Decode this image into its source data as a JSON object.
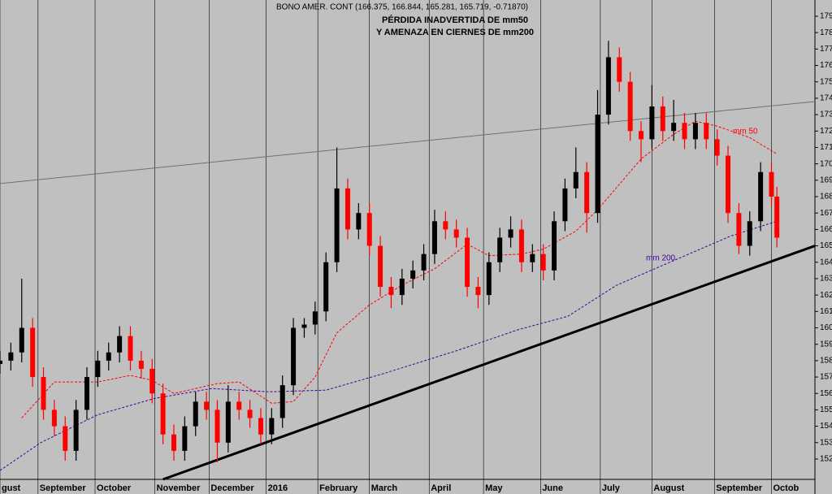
{
  "chart_data": {
    "type": "candlestick",
    "header": "BONO AMER. CONT (166.375, 166.844, 165.281, 165.719, -0.71870)",
    "title": [
      "PÉRDIDA INADVERTIDA DE mm50",
      "Y AMENAZA EN CIERNES DE mm200"
    ],
    "xlim": [
      0,
      300
    ],
    "ylim": [
      150.76,
      179.99
    ],
    "yticks": [
      152,
      153,
      154,
      155,
      156,
      157,
      158,
      159,
      160,
      161,
      162,
      163,
      164,
      165,
      166,
      167,
      168,
      169,
      170,
      171,
      172,
      173,
      174,
      175,
      176,
      177,
      178,
      179
    ],
    "xticks": [
      {
        "value": 0,
        "label": "gust"
      },
      {
        "value": 14,
        "label": "September"
      },
      {
        "value": 35,
        "label": "October"
      },
      {
        "value": 57,
        "label": "November"
      },
      {
        "value": 77,
        "label": "December"
      },
      {
        "value": 98,
        "label": "2016"
      },
      {
        "value": 117,
        "label": "February"
      },
      {
        "value": 136,
        "label": "March"
      },
      {
        "value": 158,
        "label": "April"
      },
      {
        "value": 178,
        "label": "May"
      },
      {
        "value": 199,
        "label": "June"
      },
      {
        "value": 221,
        "label": "July"
      },
      {
        "value": 240,
        "label": "August"
      },
      {
        "value": 263,
        "label": "September"
      },
      {
        "value": 284,
        "label": "Octob"
      }
    ],
    "up_color": "#000000",
    "down_color": "#ff0000",
    "x": [
      0,
      4,
      8,
      12,
      16,
      20,
      24,
      28,
      32,
      36,
      40,
      44,
      48,
      52,
      56,
      60,
      64,
      68,
      72,
      76,
      80,
      84,
      88,
      92,
      96,
      100,
      104,
      108,
      112,
      116,
      120,
      124,
      128,
      132,
      136,
      140,
      144,
      148,
      152,
      156,
      160,
      164,
      168,
      172,
      176,
      180,
      184,
      188,
      192,
      196,
      200,
      204,
      208,
      212,
      216,
      220,
      224,
      228,
      232,
      236,
      240,
      244,
      248,
      252,
      256,
      260,
      264,
      268,
      272,
      276,
      280,
      284,
      286
    ],
    "open": [
      157.8,
      158,
      158.5,
      160,
      157,
      155,
      154,
      152.5,
      155,
      157,
      158,
      158.5,
      159.5,
      158,
      157.5,
      156,
      153.5,
      152.5,
      154,
      155.5,
      155,
      153,
      155.5,
      155,
      154.5,
      153.5,
      154.5,
      156.5,
      160,
      160.2,
      161,
      164,
      168.5,
      166,
      167,
      165,
      162.5,
      162,
      163,
      163.5,
      164.5,
      166.5,
      166,
      165.5,
      162.5,
      162,
      164,
      165.5,
      166,
      164,
      164.5,
      163.5,
      166.5,
      168.5,
      169.5,
      167,
      173,
      176.5,
      175,
      172,
      171.5,
      173.5,
      172,
      172.5,
      171.5,
      172.5,
      171.5,
      170.5,
      167,
      165,
      166.5,
      169.5,
      168
    ],
    "high": [
      158.6,
      159.1,
      163,
      160.6,
      157.6,
      155.6,
      154.6,
      155.6,
      157.6,
      158.6,
      159.1,
      160.1,
      160.1,
      158.6,
      158.1,
      156.6,
      154.1,
      154.6,
      156.1,
      156.1,
      155.6,
      156.5,
      156.1,
      155.6,
      155.1,
      155.1,
      157.1,
      160.6,
      160.6,
      161.6,
      164.6,
      171,
      169.1,
      167.6,
      167.6,
      165.6,
      163.1,
      163.6,
      164.1,
      165.1,
      167.2,
      167.1,
      166.6,
      166.1,
      163.1,
      164.6,
      166.1,
      166.8,
      166.6,
      165.1,
      165.1,
      167.1,
      169.1,
      171,
      170.1,
      174.5,
      177.5,
      177.1,
      175.6,
      172.6,
      174.8,
      174.1,
      173.9,
      173.1,
      173.1,
      173.1,
      172.1,
      171.1,
      167.6,
      167.1,
      170.1,
      170.1,
      168.6
    ],
    "low": [
      157.2,
      157.4,
      157.9,
      156.4,
      154.4,
      153.4,
      151.9,
      151.9,
      154.4,
      156.4,
      157.4,
      157.9,
      157.4,
      156.9,
      155.4,
      152.9,
      151.9,
      151.9,
      153.4,
      154.4,
      151.8,
      152.4,
      154.4,
      153.9,
      152.9,
      152.9,
      153.9,
      155.9,
      159.4,
      159.6,
      160.4,
      163.4,
      165.4,
      165.4,
      164.4,
      161.9,
      161.2,
      161.4,
      162.4,
      162.9,
      163.9,
      165.4,
      164.9,
      161.9,
      161.2,
      161.4,
      163.4,
      164.9,
      163.4,
      163.4,
      162.9,
      162.9,
      165.9,
      167.9,
      165.8,
      166.4,
      172.4,
      174.4,
      171.4,
      170.1,
      170.9,
      171.4,
      171.4,
      170.9,
      170.9,
      170.9,
      169.9,
      166.4,
      164.5,
      164.4,
      165.9,
      167.4,
      164.9
    ],
    "close": [
      158,
      158.5,
      160,
      157,
      155,
      154,
      152.5,
      155,
      157,
      158,
      158.5,
      159.5,
      158,
      157.5,
      156,
      153.5,
      152.5,
      154,
      155.5,
      155,
      153,
      155.5,
      155,
      154.5,
      153.5,
      154.5,
      156.5,
      160,
      160.2,
      161,
      164,
      168.5,
      166,
      167,
      165,
      162.5,
      162,
      163,
      163.5,
      164.5,
      166.5,
      166,
      165.5,
      162.5,
      162,
      164,
      165.5,
      166,
      164,
      164.5,
      163.5,
      166.5,
      168.5,
      169.5,
      167,
      173,
      176.5,
      175,
      172,
      171.5,
      173.5,
      172,
      172.5,
      171.5,
      172.5,
      171.5,
      170.5,
      167,
      165,
      166.5,
      169.5,
      168,
      165.5
    ],
    "series": [
      {
        "name": "mm 50",
        "color": "#ff0000",
        "x": [
          8,
          20,
          36,
          48,
          56,
          64,
          80,
          88,
          100,
          108,
          116,
          124,
          136,
          148,
          160,
          172,
          180,
          192,
          200,
          212,
          220,
          236,
          248,
          256,
          264,
          276,
          286
        ],
        "values": [
          154.5,
          156.7,
          156.7,
          157.1,
          156.8,
          156,
          156.6,
          156.7,
          155.4,
          155.5,
          157,
          159.7,
          161.4,
          162.6,
          163.6,
          165.1,
          164.4,
          164.5,
          164.8,
          165.9,
          167.2,
          170.3,
          171.8,
          172.6,
          172.3,
          171.6,
          170.6
        ]
      },
      {
        "name": "mm 200",
        "color": "#4000a0",
        "x": [
          0,
          15,
          36,
          57,
          78,
          99,
          120,
          141,
          168,
          191,
          209,
          227,
          248,
          269,
          286
        ],
        "values": [
          151.3,
          153,
          154.7,
          155.7,
          156.3,
          156.1,
          156.2,
          157.2,
          158.6,
          159.9,
          160.7,
          162.6,
          164.1,
          165.6,
          166.5
        ]
      }
    ],
    "trendlines": [
      {
        "color": "#707070",
        "x": [
          0,
          300
        ],
        "values": [
          168.8,
          173.8
        ]
      },
      {
        "color": "#000000",
        "x": [
          60,
          300
        ],
        "values": [
          150.76,
          165
        ]
      }
    ]
  }
}
